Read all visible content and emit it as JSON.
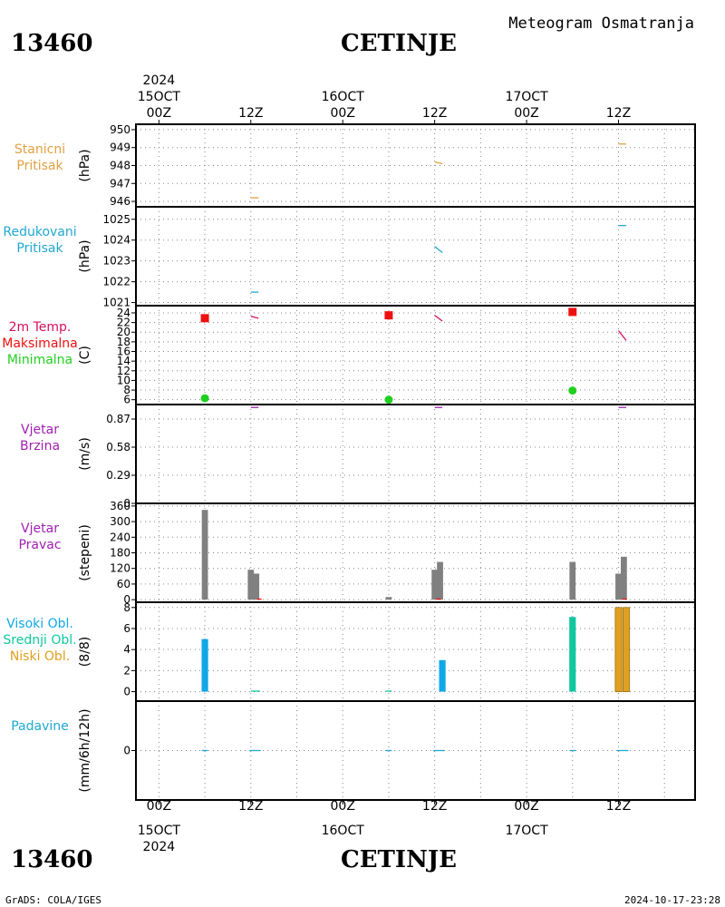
{
  "header": {
    "station_id": "13460",
    "station_name": "CETINJE",
    "subtitle": "Meteogram Osmatranja"
  },
  "footer": {
    "left": "GrADS: COLA/IGES",
    "right": "2024-10-17-23:28"
  },
  "time_axis": {
    "year": "2024",
    "labels": [
      {
        "h": 0,
        "hour": "00Z",
        "date": "15OCT"
      },
      {
        "h": 12,
        "hour": "12Z",
        "date": ""
      },
      {
        "h": 24,
        "hour": "00Z",
        "date": "16OCT"
      },
      {
        "h": 36,
        "hour": "12Z",
        "date": ""
      },
      {
        "h": 48,
        "hour": "00Z",
        "date": "17OCT"
      },
      {
        "h": 60,
        "hour": "12Z",
        "date": ""
      }
    ],
    "range_hours": [
      -3,
      70
    ]
  },
  "colors": {
    "pressure": "#e0a040",
    "reduced": "#20a8d0",
    "temp": "#d01060",
    "tmax": "#ee1010",
    "tmin": "#20d020",
    "wind": "#a020b0",
    "dir": "#808080",
    "dir_small": "#ee1010",
    "cloud_high": "#10a8e8",
    "cloud_mid": "#10c8a0",
    "cloud_low": "#e0a020",
    "precip": "#20a8d0",
    "grid": "#888888"
  },
  "chart_data": [
    {
      "id": "station-pressure",
      "type": "line",
      "labels": [
        "Stanicni",
        "Pritisak"
      ],
      "label_color": "pressure",
      "ylabel": "(hPa)",
      "ylim": [
        945.7,
        950.3
      ],
      "yticks": [
        946,
        947,
        948,
        949,
        950
      ],
      "series": [
        {
          "color": "pressure",
          "segments": [
            [
              [
                12,
                946.2
              ],
              [
                13,
                946.2
              ]
            ],
            [
              [
                36,
                948.2
              ],
              [
                37,
                948.1
              ]
            ],
            [
              [
                60,
                949.2
              ],
              [
                61,
                949.2
              ]
            ]
          ]
        }
      ]
    },
    {
      "id": "reduced-pressure",
      "type": "line",
      "labels": [
        "Redukovani",
        "Pritisak"
      ],
      "label_color": "reduced",
      "ylabel": "(hPa)",
      "ylim": [
        1020.85,
        1025.6
      ],
      "yticks": [
        1021,
        1022,
        1023,
        1024,
        1025
      ],
      "series": [
        {
          "color": "reduced",
          "segments": [
            [
              [
                12,
                1021.5
              ],
              [
                13,
                1021.5
              ]
            ],
            [
              [
                36,
                1023.7
              ],
              [
                37,
                1023.4
              ]
            ],
            [
              [
                60,
                1024.7
              ],
              [
                61,
                1024.7
              ]
            ]
          ]
        }
      ]
    },
    {
      "id": "temperature",
      "type": "line",
      "labels": [
        "2m Temp.",
        "Maksimalna",
        "Minimalna"
      ],
      "label_colors": [
        "temp",
        "tmax",
        "tmin"
      ],
      "ylabel": "(C)",
      "ylim": [
        5,
        25.5
      ],
      "yticks": [
        6,
        8,
        10,
        12,
        14,
        16,
        18,
        20,
        22,
        24
      ],
      "series": [
        {
          "color": "temp",
          "segments": [
            [
              [
                12,
                23.3
              ],
              [
                13,
                22.9
              ]
            ],
            [
              [
                36,
                23.5
              ],
              [
                37,
                22.3
              ]
            ],
            [
              [
                60,
                20.3
              ],
              [
                61,
                18.3
              ]
            ]
          ]
        }
      ],
      "markers": [
        {
          "x": 6,
          "y": 22.9,
          "shape": "square",
          "color": "tmax"
        },
        {
          "x": 30,
          "y": 23.5,
          "shape": "square",
          "color": "tmax"
        },
        {
          "x": 54,
          "y": 24.2,
          "shape": "square",
          "color": "tmax"
        },
        {
          "x": 6,
          "y": 6.3,
          "shape": "circle",
          "color": "tmin"
        },
        {
          "x": 30,
          "y": 6.0,
          "shape": "circle",
          "color": "tmin"
        },
        {
          "x": 54,
          "y": 7.9,
          "shape": "circle",
          "color": "tmin"
        }
      ]
    },
    {
      "id": "wind-speed",
      "type": "line",
      "labels": [
        "Vjetar",
        "Brzina"
      ],
      "label_color": "wind",
      "ylabel": "(m/s)",
      "ylim": [
        0,
        1.02
      ],
      "yticks": [
        0,
        0.29,
        0.58,
        0.87
      ],
      "series": [
        {
          "color": "wind",
          "segments": [
            [
              [
                12,
                0.99
              ],
              [
                13,
                0.99
              ]
            ],
            [
              [
                36,
                0.99
              ],
              [
                37,
                0.99
              ]
            ],
            [
              [
                60,
                0.99
              ],
              [
                61,
                0.99
              ]
            ]
          ]
        }
      ]
    },
    {
      "id": "wind-direction",
      "type": "bar",
      "labels": [
        "Vjetar",
        "Pravac"
      ],
      "label_color": "wind",
      "ylabel": "(stepeni)",
      "ylim": [
        -10,
        370
      ],
      "yticks": [
        0,
        60,
        120,
        180,
        240,
        300,
        360
      ],
      "bar_width_h": 0.8,
      "bars": [
        {
          "x": 6,
          "value": 345,
          "color": "dir"
        },
        {
          "x": 12,
          "value": 115,
          "color": "dir"
        },
        {
          "x": 12.7,
          "value": 100,
          "color": "dir"
        },
        {
          "x": 30,
          "value": 10,
          "color": "dir"
        },
        {
          "x": 36,
          "value": 115,
          "color": "dir"
        },
        {
          "x": 36.7,
          "value": 145,
          "color": "dir"
        },
        {
          "x": 54,
          "value": 145,
          "color": "dir"
        },
        {
          "x": 60,
          "value": 100,
          "color": "dir"
        },
        {
          "x": 60.7,
          "value": 165,
          "color": "dir"
        }
      ],
      "series": [
        {
          "color": "dir_small",
          "segments": [
            [
              [
                12.8,
                2
              ],
              [
                13.4,
                2
              ]
            ],
            [
              [
                36.2,
                2
              ],
              [
                36.8,
                2
              ]
            ],
            [
              [
                60.5,
                2
              ],
              [
                61.1,
                2
              ]
            ]
          ]
        }
      ]
    },
    {
      "id": "cloud-cover",
      "type": "bar",
      "labels": [
        "Visoki Obl.",
        "Srednji Obl.",
        "Niski Obl."
      ],
      "label_colors": [
        "cloud_high",
        "cloud_mid",
        "cloud_low"
      ],
      "ylabel": "(8/8)",
      "ylim": [
        -0.9,
        8.5
      ],
      "yticks": [
        0,
        2,
        4,
        6,
        8
      ],
      "bar_width_h": 0.85,
      "bars": [
        {
          "x": 6,
          "value": 5.0,
          "color": "cloud_high"
        },
        {
          "x": 37,
          "value": 3.0,
          "color": "cloud_high"
        },
        {
          "x": 54,
          "value": 7.1,
          "color": "cloud_mid"
        },
        {
          "x": 60,
          "value": 8.0,
          "color": "cloud_low",
          "outline": true
        },
        {
          "x": 61,
          "value": 8.0,
          "color": "cloud_low",
          "outline": true
        }
      ],
      "series": [
        {
          "color": "cloud_mid",
          "segments": [
            [
              [
                12,
                0.05
              ],
              [
                13.2,
                0.05
              ]
            ],
            [
              [
                29.6,
                0.05
              ],
              [
                30.4,
                0.05
              ]
            ]
          ]
        }
      ]
    },
    {
      "id": "precipitation",
      "type": "line",
      "labels": [
        "Padavine"
      ],
      "label_color": "precip",
      "ylabel": "(mm/6h/12h)",
      "ylim": [
        -1.03,
        1.03
      ],
      "yticks": [
        0
      ],
      "series": [
        {
          "color": "precip",
          "segments": [
            [
              [
                5.6,
                0
              ],
              [
                6.4,
                0
              ]
            ],
            [
              [
                11.8,
                0
              ],
              [
                13.3,
                0
              ]
            ],
            [
              [
                29.6,
                0
              ],
              [
                30.4,
                0
              ]
            ],
            [
              [
                35.8,
                0
              ],
              [
                37.3,
                0
              ]
            ],
            [
              [
                53.6,
                0
              ],
              [
                54.4,
                0
              ]
            ],
            [
              [
                59.8,
                0
              ],
              [
                61.3,
                0
              ]
            ]
          ]
        }
      ]
    }
  ]
}
